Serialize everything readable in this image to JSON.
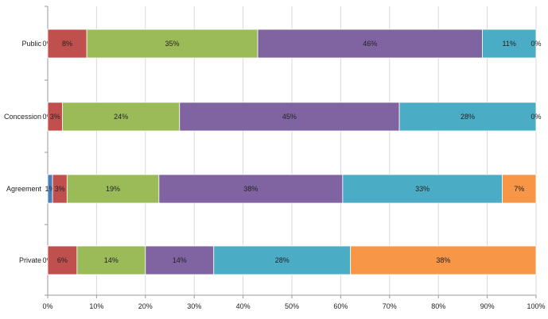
{
  "chart_data": {
    "type": "bar",
    "orientation": "horizontal",
    "stacked": true,
    "percent": true,
    "categories": [
      "Public",
      "Concession",
      "Agreement",
      "Private"
    ],
    "series": [
      {
        "color": "#4a7ebb",
        "values": [
          0,
          0,
          1,
          0
        ],
        "labels": [
          "0%",
          "0%",
          "1%",
          "0%"
        ]
      },
      {
        "color": "#c0504d",
        "values": [
          8,
          3,
          3,
          6
        ],
        "labels": [
          "8%",
          "3%",
          "3%",
          "6%"
        ]
      },
      {
        "color": "#9bbb59",
        "values": [
          35,
          24,
          19,
          14
        ],
        "labels": [
          "35%",
          "24%",
          "19%",
          "14%"
        ]
      },
      {
        "color": "#8064a2",
        "values": [
          46,
          45,
          38,
          14
        ],
        "labels": [
          "46%",
          "45%",
          "38%",
          "14%"
        ]
      },
      {
        "color": "#4bacc6",
        "values": [
          11,
          28,
          33,
          28
        ],
        "labels": [
          "11%",
          "28%",
          "33%",
          "28%"
        ]
      },
      {
        "color": "#f79646",
        "values": [
          0,
          0,
          7,
          38
        ],
        "labels": [
          "0%",
          "0%",
          "7%",
          "38%"
        ]
      }
    ],
    "xlim": [
      0,
      100
    ],
    "xticks": [
      "0%",
      "10%",
      "20%",
      "30%",
      "40%",
      "50%",
      "60%",
      "70%",
      "80%",
      "90%",
      "100%"
    ],
    "grid": true,
    "legend": "none",
    "title": "",
    "xlabel": "",
    "ylabel": ""
  }
}
